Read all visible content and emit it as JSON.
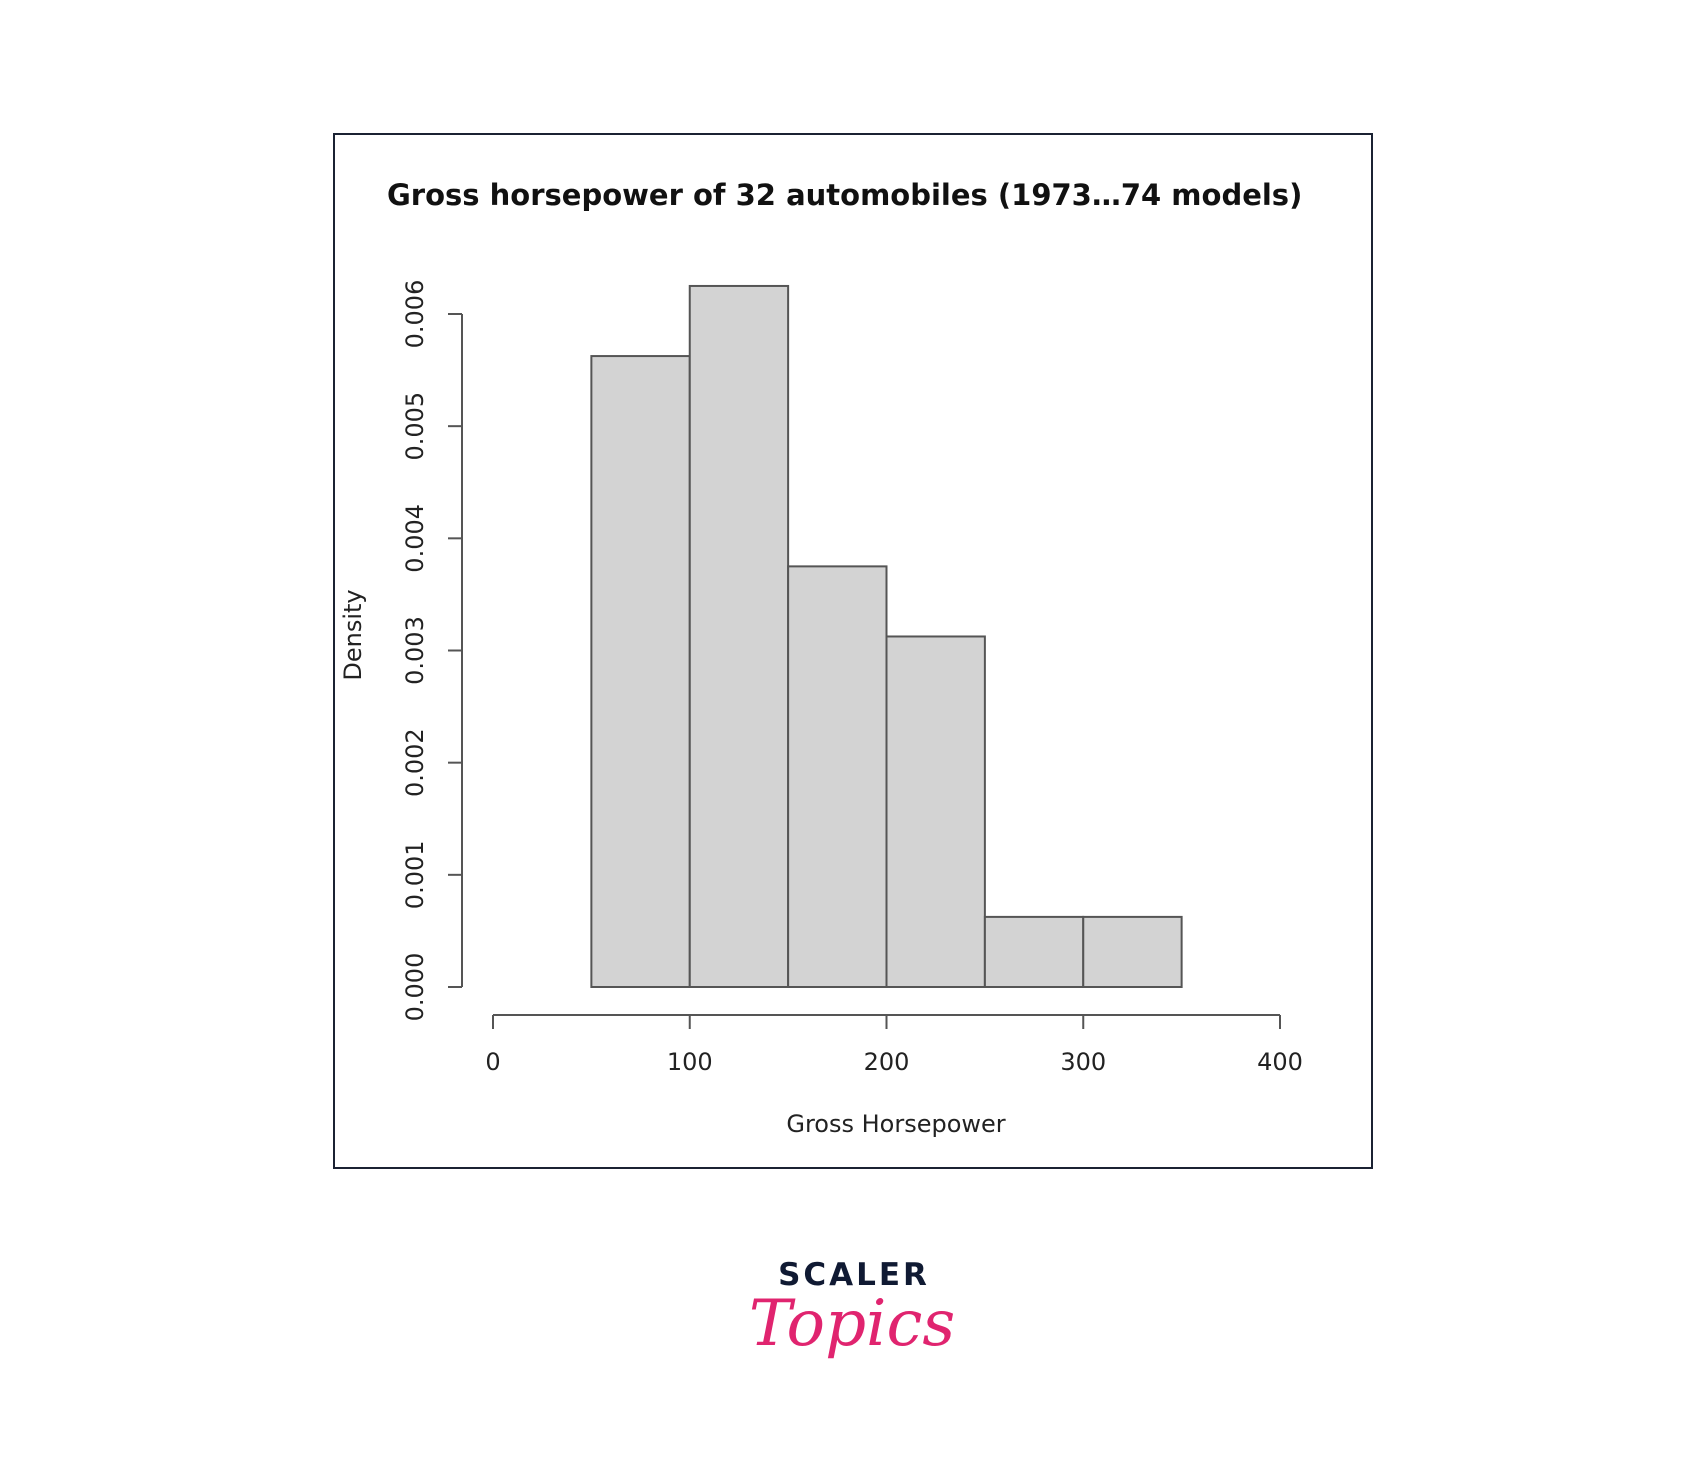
{
  "chart_data": {
    "type": "bar",
    "subtype": "histogram",
    "title": "Gross horsepower of 32 automobiles (1973…74 models)",
    "xlabel": "Gross Horsepower",
    "ylabel": "Density",
    "bins": [
      {
        "start": 50,
        "end": 100,
        "density": 0.005625
      },
      {
        "start": 100,
        "end": 150,
        "density": 0.00625
      },
      {
        "start": 150,
        "end": 200,
        "density": 0.00375
      },
      {
        "start": 200,
        "end": 250,
        "density": 0.003125
      },
      {
        "start": 250,
        "end": 300,
        "density": 0.000625
      },
      {
        "start": 300,
        "end": 350,
        "density": 0.000625
      }
    ],
    "xlim": [
      0,
      400
    ],
    "ylim": [
      0,
      0.006
    ],
    "x_ticks": [
      0,
      100,
      200,
      300,
      400
    ],
    "x_tick_labels": [
      "0",
      "100",
      "200",
      "300",
      "400"
    ],
    "y_ticks": [
      0,
      0.001,
      0.002,
      0.003,
      0.004,
      0.005,
      0.006
    ],
    "y_tick_labels": [
      "0.000",
      "0.001",
      "0.002",
      "0.003",
      "0.004",
      "0.005",
      "0.006"
    ],
    "grid": false,
    "bar_fill": "#d3d3d3",
    "bar_stroke": "#555555"
  },
  "brand": {
    "line1": "SCALER",
    "line2": "Topics",
    "color_dark": "#101a33",
    "color_accent": "#e0246f"
  }
}
